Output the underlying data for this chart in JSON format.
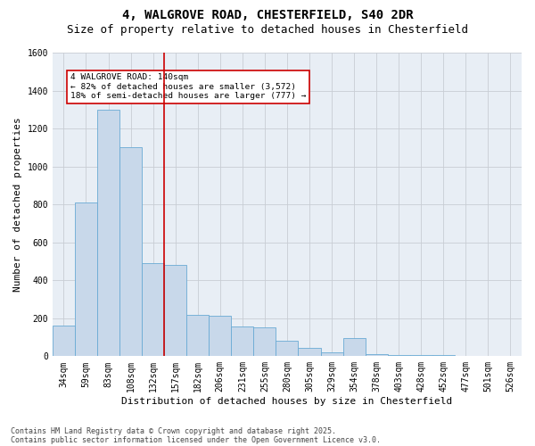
{
  "title1": "4, WALGROVE ROAD, CHESTERFIELD, S40 2DR",
  "title2": "Size of property relative to detached houses in Chesterfield",
  "xlabel": "Distribution of detached houses by size in Chesterfield",
  "ylabel": "Number of detached properties",
  "footnote1": "Contains HM Land Registry data © Crown copyright and database right 2025.",
  "footnote2": "Contains public sector information licensed under the Open Government Licence v3.0.",
  "annotation_line1": "4 WALGROVE ROAD: 140sqm",
  "annotation_line2": "← 82% of detached houses are smaller (3,572)",
  "annotation_line3": "18% of semi-detached houses are larger (777) →",
  "categories": [
    "34sqm",
    "59sqm",
    "83sqm",
    "108sqm",
    "132sqm",
    "157sqm",
    "182sqm",
    "206sqm",
    "231sqm",
    "255sqm",
    "280sqm",
    "305sqm",
    "329sqm",
    "354sqm",
    "378sqm",
    "403sqm",
    "428sqm",
    "452sqm",
    "477sqm",
    "501sqm",
    "526sqm"
  ],
  "bar_values": [
    160,
    810,
    1300,
    1100,
    490,
    480,
    220,
    215,
    155,
    150,
    80,
    45,
    20,
    95,
    12,
    8,
    4,
    4,
    2,
    2,
    2
  ],
  "bar_color": "#c8d8ea",
  "bar_edge_color": "#6aaad4",
  "vline_color": "#cc0000",
  "vline_x": 4.5,
  "ylim": [
    0,
    1600
  ],
  "yticks": [
    0,
    200,
    400,
    600,
    800,
    1000,
    1200,
    1400,
    1600
  ],
  "grid_color": "#c8cdd4",
  "bg_color": "#e8eef5",
  "annotation_box_color": "#cc0000",
  "title_fontsize": 10,
  "subtitle_fontsize": 9,
  "axis_label_fontsize": 8,
  "tick_fontsize": 7,
  "footnote_fontsize": 6
}
